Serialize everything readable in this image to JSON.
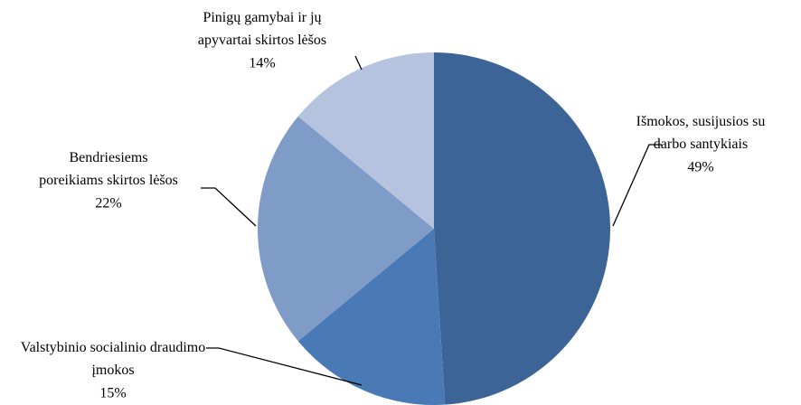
{
  "chart_data": {
    "type": "pie",
    "categories": [
      "Išmokos, susijusios su darbo santykiais",
      "Valstybinio socialinio draudimo įmokos",
      "Bendriesiems poreikiams skirtos lėšos",
      "Pinigų gamybai ir jų apyvartai skirtos lėšos"
    ],
    "values": [
      49,
      15,
      22,
      14
    ],
    "value_labels": [
      "49%",
      "15%",
      "22%",
      "14%"
    ],
    "colors": [
      "#3d6496",
      "#4a7ab5",
      "#7f9bc8",
      "#b5c3de"
    ]
  }
}
